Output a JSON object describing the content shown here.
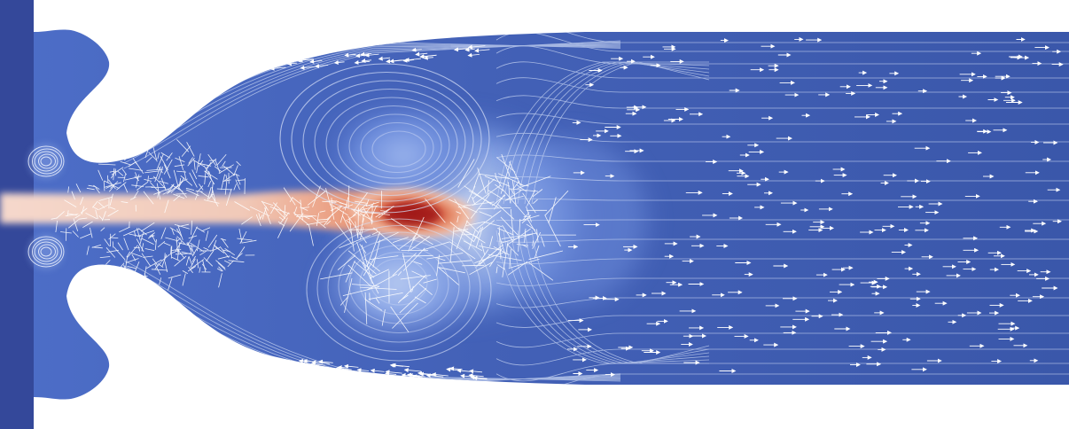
{
  "colors": {
    "background": "#ffffff",
    "base_flow": "#3d5cb0",
    "wall": "#34489a",
    "mid_blue": "#6a8ee0",
    "light_blue": "#c3d5f4",
    "jet_core": "#f3d6c9",
    "hot_orange": "#e58a68",
    "hot_red": "#b32322",
    "streamline": "#c7d4f2",
    "arrow": "#ffffff"
  },
  "icons": {
    "arrow_glyph": "arrow-icon"
  }
}
